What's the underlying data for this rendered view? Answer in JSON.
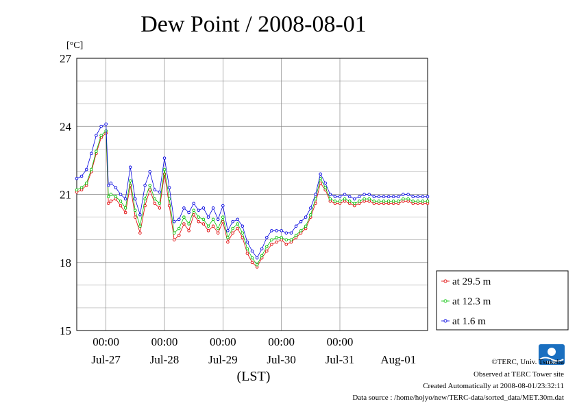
{
  "chart_data": {
    "type": "line",
    "title": "Dew Point / 2008-08-01",
    "ylabel": "[°C]",
    "xlabel": "(LST)",
    "ylim": [
      15,
      27
    ],
    "yticks": [
      15,
      18,
      21,
      24,
      27
    ],
    "ytick_labels": [
      "15",
      "18",
      "21",
      "24",
      "27"
    ],
    "xlim_hours": [
      0,
      144
    ],
    "x_unit_note": "hours after 2008-07-26 12:00 LST",
    "xticks_time": [
      {
        "x": 12,
        "label": "00:00"
      },
      {
        "x": 36,
        "label": "00:00"
      },
      {
        "x": 60,
        "label": "00:00"
      },
      {
        "x": 84,
        "label": "00:00"
      },
      {
        "x": 108,
        "label": "00:00"
      }
    ],
    "xticks_date": [
      {
        "x": 12,
        "label": "Jul-27"
      },
      {
        "x": 36,
        "label": "Jul-28"
      },
      {
        "x": 60,
        "label": "Jul-29"
      },
      {
        "x": 84,
        "label": "Jul-30"
      },
      {
        "x": 108,
        "label": "Jul-31"
      },
      {
        "x": 132,
        "label": "Aug-01"
      }
    ],
    "grid": true,
    "legend_position": "right",
    "x": [
      0,
      2,
      4,
      6,
      8,
      10,
      12,
      13,
      14,
      16,
      18,
      20,
      22,
      24,
      26,
      28,
      30,
      32,
      34,
      36,
      38,
      40,
      42,
      44,
      46,
      48,
      50,
      52,
      54,
      56,
      58,
      60,
      62,
      64,
      66,
      68,
      70,
      72,
      74,
      76,
      78,
      80,
      82,
      84,
      86,
      88,
      90,
      92,
      94,
      96,
      98,
      100,
      102,
      104,
      106,
      108,
      110,
      112,
      114,
      116,
      118,
      120,
      122,
      124,
      126,
      128,
      130,
      132,
      134,
      136,
      138,
      140,
      142,
      144
    ],
    "series": [
      {
        "name": "at 29.5 m",
        "color": "#e00000",
        "values": [
          21.1,
          21.2,
          21.4,
          22.0,
          22.8,
          23.5,
          23.7,
          20.6,
          20.7,
          20.8,
          20.5,
          20.2,
          21.4,
          20.0,
          19.3,
          20.5,
          21.2,
          20.6,
          20.4,
          21.9,
          20.5,
          19.0,
          19.2,
          19.7,
          19.4,
          20.1,
          19.8,
          19.7,
          19.4,
          19.6,
          19.3,
          19.8,
          18.9,
          19.3,
          19.5,
          19.1,
          18.4,
          18.0,
          17.8,
          18.2,
          18.5,
          18.8,
          18.9,
          19.0,
          18.8,
          18.9,
          19.1,
          19.3,
          19.5,
          20.0,
          20.6,
          21.5,
          21.2,
          20.7,
          20.6,
          20.6,
          20.7,
          20.6,
          20.5,
          20.6,
          20.7,
          20.7,
          20.6,
          20.6,
          20.6,
          20.6,
          20.6,
          20.6,
          20.7,
          20.7,
          20.6,
          20.6,
          20.6,
          20.6
        ]
      },
      {
        "name": "at 12.3 m",
        "color": "#00c000",
        "values": [
          21.2,
          21.3,
          21.5,
          22.1,
          22.9,
          23.6,
          23.8,
          20.9,
          21.0,
          20.9,
          20.7,
          20.4,
          21.6,
          20.3,
          19.6,
          20.8,
          21.4,
          20.8,
          20.6,
          22.1,
          20.8,
          19.3,
          19.5,
          20.0,
          19.7,
          20.3,
          20.0,
          19.9,
          19.6,
          19.9,
          19.5,
          20.0,
          19.1,
          19.5,
          19.7,
          19.3,
          18.6,
          18.2,
          17.9,
          18.3,
          18.7,
          19.0,
          19.1,
          19.1,
          19.0,
          19.0,
          19.2,
          19.4,
          19.6,
          20.1,
          20.8,
          21.7,
          21.3,
          20.8,
          20.7,
          20.7,
          20.8,
          20.7,
          20.6,
          20.7,
          20.8,
          20.8,
          20.7,
          20.7,
          20.7,
          20.7,
          20.7,
          20.7,
          20.8,
          20.8,
          20.7,
          20.7,
          20.7,
          20.7
        ]
      },
      {
        "name": "at 1.6 m",
        "color": "#0000e0",
        "values": [
          21.7,
          21.8,
          22.1,
          22.8,
          23.6,
          24.0,
          24.1,
          21.4,
          21.5,
          21.3,
          21.0,
          20.8,
          22.2,
          20.8,
          20.1,
          21.4,
          22.0,
          21.2,
          21.1,
          22.6,
          21.3,
          19.8,
          19.9,
          20.4,
          20.2,
          20.6,
          20.3,
          20.4,
          20.0,
          20.4,
          19.9,
          20.5,
          19.4,
          19.8,
          19.9,
          19.6,
          18.9,
          18.5,
          18.2,
          18.6,
          19.1,
          19.4,
          19.4,
          19.4,
          19.3,
          19.3,
          19.6,
          19.8,
          20.0,
          20.4,
          21.0,
          21.9,
          21.5,
          21.0,
          20.9,
          20.9,
          21.0,
          20.9,
          20.8,
          20.9,
          21.0,
          21.0,
          20.9,
          20.9,
          20.9,
          20.9,
          20.9,
          20.9,
          21.0,
          21.0,
          20.9,
          20.9,
          20.9,
          20.9
        ]
      }
    ]
  },
  "credit": {
    "copyright": "©TERC, Univ. Tsukuba",
    "observed": "Observed at TERC Tower site",
    "created": "Created Automatically at 2008-08-01/23:32:11",
    "source": "Data source : /home/hojyo/new/TERC-data/sorted_data/MET.30m.dat"
  },
  "logo": {
    "text": "TERC",
    "color": "#1a6fc0",
    "icon": "terc-logo-icon"
  }
}
